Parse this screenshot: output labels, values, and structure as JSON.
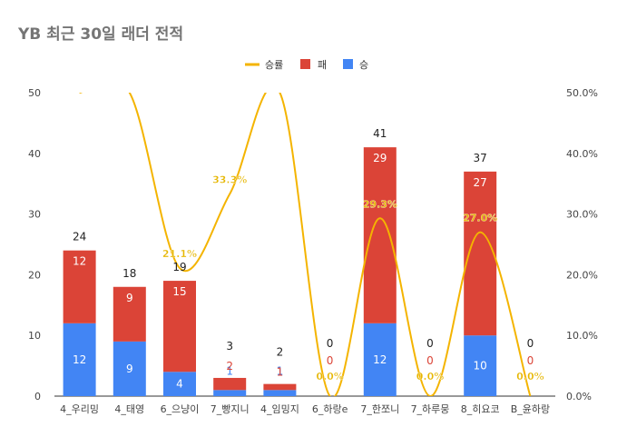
{
  "chart_data": {
    "type": "bar",
    "stacked": true,
    "title": "YB 최근 30일 래더 전적",
    "categories": [
      "4_우리밍",
      "4_태영",
      "6_으냥이",
      "7_빵지니",
      "4_임밍지",
      "6_하랑e",
      "7_한쪼니",
      "7_하루뭉",
      "8_히요코",
      "B_윤하랑"
    ],
    "series": [
      {
        "name": "승",
        "kind": "bar",
        "color": "#4285f4",
        "values": [
          12,
          9,
          4,
          1,
          1,
          0,
          12,
          0,
          10,
          0
        ]
      },
      {
        "name": "패",
        "kind": "bar",
        "color": "#db4437",
        "values": [
          12,
          9,
          15,
          2,
          1,
          0,
          29,
          0,
          27,
          0
        ]
      },
      {
        "name": "승률",
        "kind": "line",
        "axis": "right",
        "color": "#f4b400",
        "values": [
          50.0,
          50.0,
          21.1,
          33.3,
          50.0,
          0.0,
          29.3,
          0.0,
          27.0,
          0.0
        ]
      }
    ],
    "totals": [
      "24",
      "18",
      "19",
      "3",
      "2",
      "0",
      "41",
      "0",
      "37",
      "0"
    ],
    "win_labels": [
      "12",
      "9",
      "4",
      "1",
      "1",
      "0",
      "12",
      "",
      "10",
      ""
    ],
    "loss_labels": [
      "12",
      "9",
      "15",
      "2",
      "1",
      "0",
      "29",
      "0",
      "27",
      "0"
    ],
    "rate_labels": [
      "",
      "",
      "21.1%",
      "33.3%",
      "",
      "0.0%",
      "29.3%",
      "0.0%",
      "27.0%",
      "0.0%"
    ],
    "left_axis": {
      "min": 0,
      "max": 50,
      "ticks": [
        "0",
        "10",
        "20",
        "30",
        "40",
        "50"
      ]
    },
    "right_axis": {
      "min": 0,
      "max": 50,
      "ticks": [
        "0.0%",
        "10.0%",
        "20.0%",
        "30.0%",
        "40.0%",
        "50.0%"
      ]
    },
    "legend": {
      "position": "top",
      "items": [
        "승률",
        "패",
        "승"
      ]
    },
    "grid": false
  }
}
